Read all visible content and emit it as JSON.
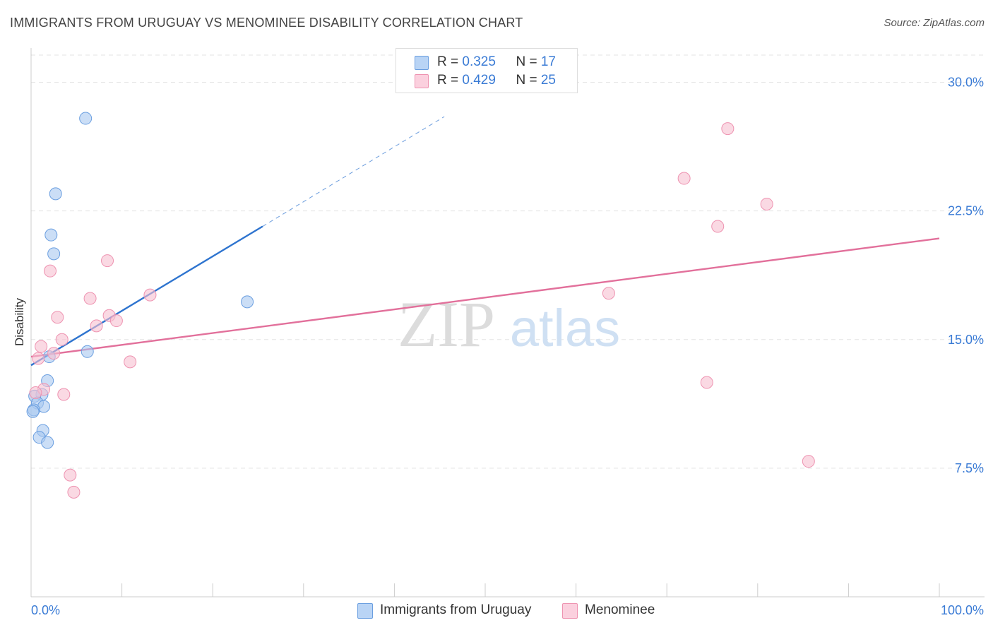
{
  "header": {
    "title": "IMMIGRANTS FROM URUGUAY VS MENOMINEE DISABILITY CORRELATION CHART",
    "source": "Source: ZipAtlas.com"
  },
  "watermark": {
    "zip": "ZIP",
    "atlas": "atlas"
  },
  "legend": {
    "uruguay": {
      "r_label": "R = ",
      "r_value": "0.325",
      "n_label": "N = ",
      "n_value": "17"
    },
    "menominee": {
      "r_label": "R = ",
      "r_value": "0.429",
      "n_label": "N = ",
      "n_value": "25"
    }
  },
  "chart_data": {
    "type": "scatter",
    "title": "IMMIGRANTS FROM URUGUAY VS MENOMINEE DISABILITY CORRELATION CHART",
    "xlabel": "",
    "ylabel": "Disability",
    "xlim": [
      0,
      100
    ],
    "ylim": [
      0,
      32
    ],
    "x_tick_labels": [
      {
        "value": 0,
        "label": "0.0%"
      },
      {
        "value": 100,
        "label": "100.0%"
      }
    ],
    "y_tick_labels": [
      {
        "value": 7.5,
        "label": "7.5%"
      },
      {
        "value": 15.0,
        "label": "15.0%"
      },
      {
        "value": 22.5,
        "label": "22.5%"
      },
      {
        "value": 30.0,
        "label": "30.0%"
      }
    ],
    "grid": true,
    "legend_position": "top-center",
    "series": [
      {
        "name": "Immigrants from Uruguay",
        "color": "#a9c8f0",
        "stroke": "#6b9fe0",
        "line_color": "#2e74cf",
        "points": [
          [
            6.0,
            27.9
          ],
          [
            2.7,
            23.5
          ],
          [
            2.2,
            21.1
          ],
          [
            2.5,
            20.0
          ],
          [
            23.8,
            17.2
          ],
          [
            6.2,
            14.3
          ],
          [
            2.0,
            14.0
          ],
          [
            1.8,
            12.6
          ],
          [
            1.2,
            11.8
          ],
          [
            0.4,
            11.7
          ],
          [
            0.7,
            11.3
          ],
          [
            1.4,
            11.1
          ],
          [
            0.3,
            10.9
          ],
          [
            0.2,
            10.8
          ],
          [
            1.3,
            9.7
          ],
          [
            0.9,
            9.3
          ],
          [
            1.8,
            9.0
          ]
        ],
        "trend_solid": [
          [
            0.0,
            13.5
          ],
          [
            25.5,
            21.6
          ]
        ],
        "trend_dashed": [
          [
            25.5,
            21.6
          ],
          [
            45.5,
            28.0
          ]
        ]
      },
      {
        "name": "Menominee",
        "color": "#f7bfd1",
        "stroke": "#ee93b1",
        "line_color": "#e2709b",
        "points": [
          [
            76.7,
            27.3
          ],
          [
            71.9,
            24.4
          ],
          [
            81.0,
            22.9
          ],
          [
            75.6,
            21.6
          ],
          [
            8.4,
            19.6
          ],
          [
            2.1,
            19.0
          ],
          [
            63.6,
            17.7
          ],
          [
            13.1,
            17.6
          ],
          [
            6.5,
            17.4
          ],
          [
            2.9,
            16.3
          ],
          [
            8.6,
            16.4
          ],
          [
            9.4,
            16.1
          ],
          [
            7.2,
            15.8
          ],
          [
            3.4,
            15.0
          ],
          [
            1.1,
            14.6
          ],
          [
            2.5,
            14.2
          ],
          [
            0.8,
            13.9
          ],
          [
            10.9,
            13.7
          ],
          [
            1.4,
            12.1
          ],
          [
            0.5,
            11.9
          ],
          [
            3.6,
            11.8
          ],
          [
            74.4,
            12.5
          ],
          [
            85.6,
            7.9
          ],
          [
            4.3,
            7.1
          ],
          [
            4.7,
            6.1
          ]
        ],
        "trend_solid": [
          [
            0.0,
            14.0
          ],
          [
            100.0,
            20.9
          ]
        ]
      }
    ]
  },
  "bottom_legend": {
    "uruguay_label": "Immigrants from Uruguay",
    "menominee_label": "Menominee"
  }
}
